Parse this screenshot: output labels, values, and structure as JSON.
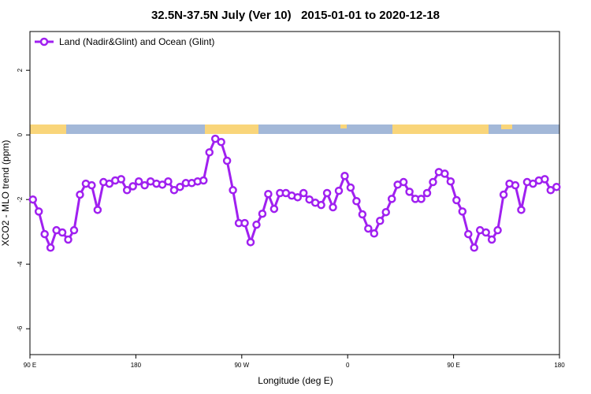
{
  "chart_data": {
    "type": "line",
    "title": "32.5N-37.5N July (Ver 10)   2015-01-01 to 2020-12-18",
    "xlabel": "Longitude (deg E)",
    "ylabel": "XCO2 - MLO trend (ppm)",
    "xlim": [
      90,
      540
    ],
    "ylim": [
      -6.8,
      3.2
    ],
    "xticks": [
      {
        "value": 90,
        "label": "90 E"
      },
      180,
      {
        "value": 270,
        "label": "90 W"
      },
      {
        "value": 360,
        "label": "0"
      },
      {
        "value": 450,
        "label": "90 E"
      },
      {
        "value": 540,
        "label": "180"
      }
    ],
    "yticks": [
      -6,
      -4,
      -2,
      0,
      2
    ],
    "legend": "upper left",
    "x": [
      92.5,
      97.5,
      102.5,
      107.5,
      112.5,
      117.5,
      122.5,
      127.5,
      132.5,
      137.5,
      142.5,
      147.5,
      152.5,
      157.5,
      162.5,
      167.5,
      172.5,
      177.5,
      182.5,
      187.5,
      192.5,
      197.5,
      202.5,
      207.5,
      212.5,
      217.5,
      222.5,
      227.5,
      232.5,
      237.5,
      242.5,
      247.5,
      252.5,
      257.5,
      262.5,
      267.5,
      272.5,
      277.5,
      282.5,
      287.5,
      292.5,
      297.5,
      302.5,
      307.5,
      312.5,
      317.5,
      322.5,
      327.5,
      332.5,
      337.5,
      342.5,
      347.5,
      352.5,
      357.5,
      362.5,
      367.5,
      372.5,
      377.5,
      382.5,
      387.5,
      392.5,
      397.5,
      402.5,
      407.5,
      412.5,
      417.5,
      422.5,
      427.5,
      432.5,
      437.5,
      442.5,
      447.5,
      452.5,
      457.5,
      462.5,
      467.5,
      472.5,
      477.5,
      482.5,
      487.5,
      492.5,
      497.5,
      502.5,
      507.5,
      512.5,
      517.5,
      522.5,
      527.5,
      532.5,
      537.5
    ],
    "series": [
      {
        "name": "Land (Nadir&Glint) and Ocean (Glint)",
        "color": "#a020f0",
        "values": [
          -2.0,
          -2.37,
          -3.07,
          -3.49,
          -2.95,
          -3.02,
          -3.24,
          -2.95,
          -1.85,
          -1.51,
          -1.56,
          -2.32,
          -1.46,
          -1.51,
          -1.41,
          -1.37,
          -1.71,
          -1.59,
          -1.44,
          -1.56,
          -1.44,
          -1.51,
          -1.54,
          -1.44,
          -1.71,
          -1.61,
          -1.49,
          -1.49,
          -1.44,
          -1.41,
          -0.54,
          -0.12,
          -0.22,
          -0.8,
          -1.71,
          -2.73,
          -2.73,
          -3.32,
          -2.78,
          -2.44,
          -1.83,
          -2.29,
          -1.8,
          -1.8,
          -1.88,
          -1.93,
          -1.8,
          -2.0,
          -2.1,
          -2.17,
          -1.8,
          -2.24,
          -1.73,
          -1.27,
          -1.63,
          -2.05,
          -2.46,
          -2.9,
          -3.05,
          -2.66,
          -2.39,
          -1.98,
          -1.54,
          -1.46,
          -1.76,
          -1.98,
          -1.98,
          -1.8,
          -1.46,
          -1.15,
          -1.2,
          -1.44,
          -2.02,
          -2.37,
          -3.07,
          -3.49,
          -2.95,
          -3.02,
          -3.24,
          -2.95,
          -1.85,
          -1.51,
          -1.56,
          -2.32,
          -1.46,
          -1.51,
          -1.41,
          -1.37,
          -1.71,
          -1.61
        ]
      }
    ]
  }
}
